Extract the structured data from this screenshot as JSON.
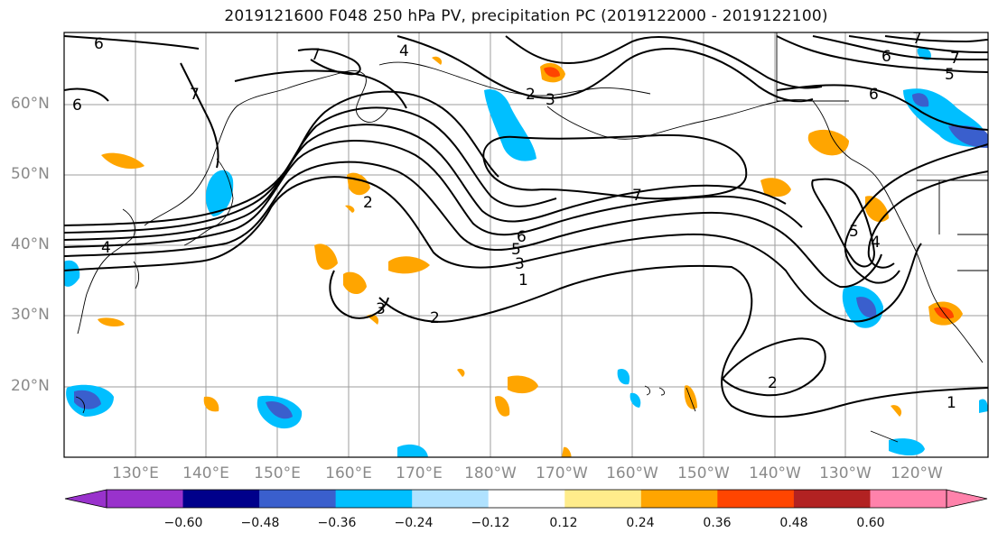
{
  "title": "2019121600 F048 250 hPa PV, precipitation PC (2019122000 - 2019122100)",
  "lat_labels": [
    "60°N",
    "50°N",
    "40°N",
    "30°N",
    "20°N"
  ],
  "lon_labels": [
    "130°E",
    "140°E",
    "150°E",
    "160°E",
    "170°E",
    "180°W",
    "170°W",
    "160°W",
    "150°W",
    "140°W",
    "130°W",
    "120°W"
  ],
  "contour_labels": [
    "6",
    "7",
    "6",
    "4",
    "7",
    "2",
    "3",
    "6",
    "5",
    "7",
    "6",
    "7",
    "7",
    "6",
    "5",
    "4",
    "5",
    "4",
    "3",
    "2",
    "3",
    "1",
    "2",
    "2",
    "1"
  ],
  "colorbar": {
    "colors": [
      "#9932cc",
      "#00008b",
      "#3a5fcd",
      "#00bfff",
      "#b0e2ff",
      "#ffffff",
      "#ffec8b",
      "#ffa500",
      "#ff4500",
      "#b22222",
      "#ff82ab"
    ],
    "ticks": [
      "−0.60",
      "−0.48",
      "−0.36",
      "−0.24",
      "−0.12",
      "0.12",
      "0.24",
      "0.36",
      "0.48",
      "0.60"
    ]
  }
}
